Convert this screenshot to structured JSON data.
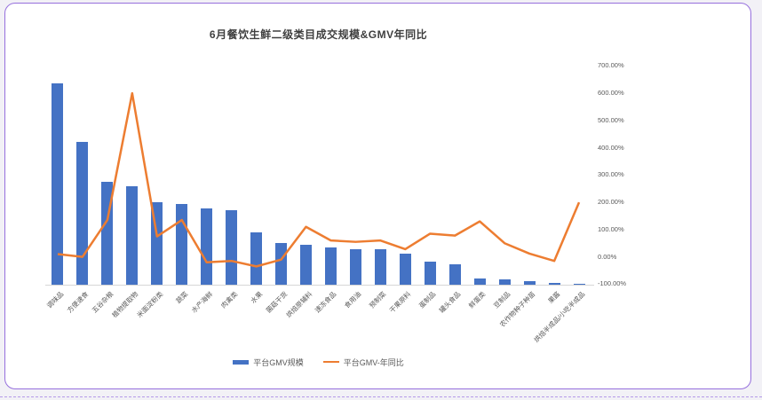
{
  "page": {
    "background_color": "#f2f1f6",
    "card_border_color": "#9670dd",
    "bar_color": "#4472C4",
    "line_color": "#ED7D31"
  },
  "chart_data": {
    "type": "bar",
    "combo": "bar+line",
    "title": "6月餐饮生鲜二级类目成交规模&GMV年同比",
    "categories": [
      "调味品",
      "方便速食",
      "五谷杂粮",
      "植物提取物",
      "米面淀粉类",
      "蔬菜",
      "水产海鲜",
      "肉禽类",
      "水果",
      "菌菇干货",
      "烘焙原辅料",
      "速冻食品",
      "食用油",
      "预制菜",
      "干果原料",
      "蛋制品",
      "罐头食品",
      "鲜蛋类",
      "豆制品",
      "农作物种子种苗",
      "果酱",
      "烘焙半成品/小吃半成品"
    ],
    "series": [
      {
        "name": "平台GMV规模",
        "type": "bar",
        "color": "#4472C4",
        "axis": "left-hidden",
        "unit": "relative-scale-max-100",
        "values": [
          100,
          71,
          51,
          49,
          41,
          40,
          38,
          37,
          26,
          20.5,
          20,
          18.5,
          17.5,
          17.5,
          15.5,
          11.5,
          10,
          3,
          2.6,
          1.9,
          1,
          0.5
        ]
      },
      {
        "name": "平台GMV-年同比",
        "type": "line",
        "color": "#ED7D31",
        "axis": "right",
        "unit": "percent",
        "values": [
          10,
          0,
          135,
          600,
          75,
          135,
          -20,
          -15,
          -35,
          -10,
          110,
          60,
          55,
          60,
          28,
          85,
          78,
          130,
          50,
          12,
          -15,
          200
        ]
      }
    ],
    "right_axis": {
      "min": -100,
      "max": 700,
      "step": 100,
      "format": "0.00%",
      "tick_labels": [
        "700.00%",
        "600.00%",
        "500.00%",
        "400.00%",
        "300.00%",
        "200.00%",
        "100.00%",
        "0.00%",
        "-100.00%"
      ]
    },
    "left_axis": {
      "visible": false
    },
    "grid": false,
    "legend_position": "bottom-center",
    "x_label_rotation_deg": 45
  }
}
